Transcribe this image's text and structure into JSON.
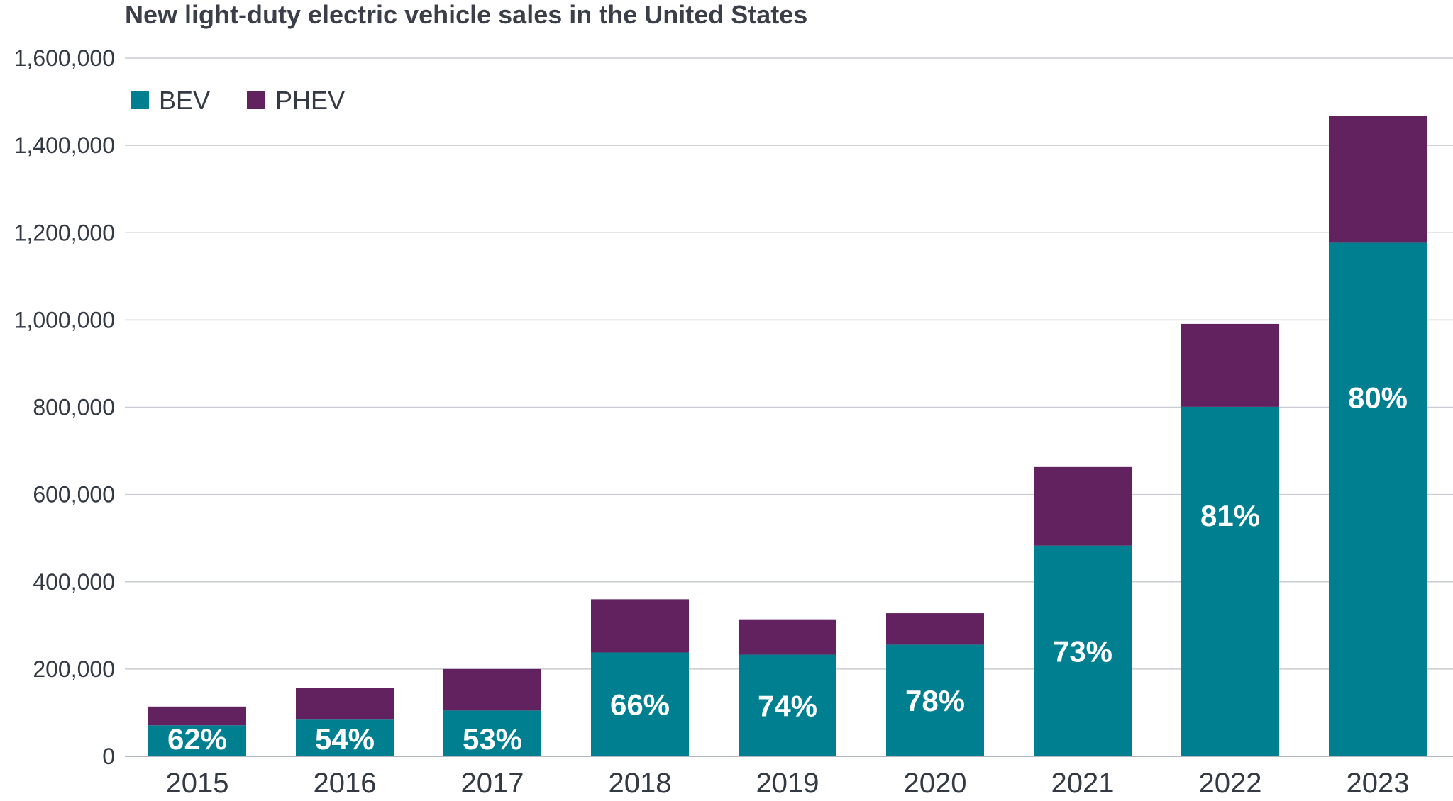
{
  "chart_data": {
    "type": "bar",
    "stacked": true,
    "title": "New light-duty electric vehicle sales in the United States",
    "xlabel": "",
    "ylabel": "",
    "ylim": [
      0,
      1600000
    ],
    "yticks": [
      0,
      200000,
      400000,
      600000,
      800000,
      1000000,
      1200000,
      1400000,
      1600000
    ],
    "ytick_labels": [
      "0",
      "200,000",
      "400,000",
      "600,000",
      "800,000",
      "1,000,000",
      "1,200,000",
      "1,400,000",
      "1,600,000"
    ],
    "grid": true,
    "legend_position": "top-left",
    "categories": [
      "2015",
      "2016",
      "2017",
      "2018",
      "2019",
      "2020",
      "2021",
      "2022",
      "2023"
    ],
    "series": [
      {
        "name": "BEV",
        "color": "#007f91",
        "values": [
          71000,
          84000,
          105000,
          238000,
          233000,
          256000,
          483000,
          801000,
          1177000
        ]
      },
      {
        "name": "PHEV",
        "color": "#62215f",
        "values": [
          43000,
          73000,
          95000,
          122000,
          81000,
          72000,
          180000,
          190000,
          290000
        ]
      }
    ],
    "data_labels": [
      "62%",
      "54%",
      "53%",
      "66%",
      "74%",
      "78%",
      "73%",
      "81%",
      "80%"
    ]
  }
}
